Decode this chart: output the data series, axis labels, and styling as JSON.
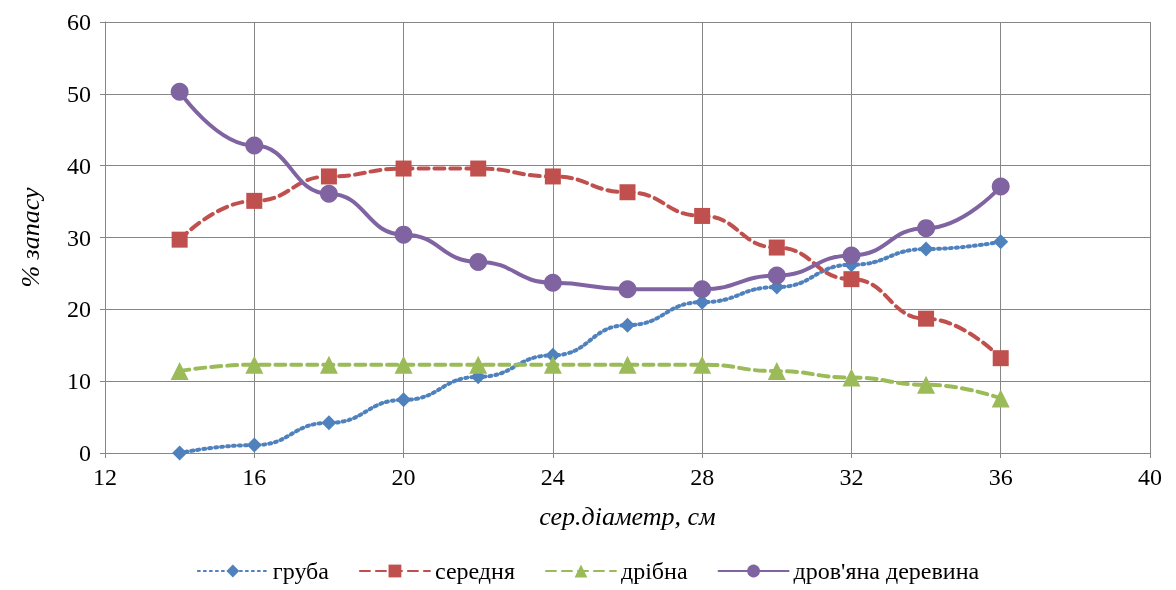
{
  "chart_data": {
    "type": "line",
    "xlabel": "сер.діаметр, см",
    "ylabel": "% запасу",
    "x": [
      14,
      16,
      18,
      20,
      22,
      24,
      26,
      28,
      30,
      32,
      34,
      36
    ],
    "xlim": [
      12,
      40
    ],
    "xticks": [
      12,
      16,
      20,
      24,
      28,
      32,
      36,
      40
    ],
    "ylim": [
      0,
      60
    ],
    "yticks": [
      0,
      10,
      20,
      30,
      40,
      50,
      60
    ],
    "grid": true,
    "legend": "bottom",
    "series": [
      {
        "name": "груба",
        "color": "#4f81bd",
        "marker": "diamond",
        "line_style": "dotted",
        "values": [
          0,
          1.1,
          4.2,
          7.4,
          10.6,
          13.6,
          17.8,
          21,
          23.1,
          26.2,
          28.4,
          29.4
        ]
      },
      {
        "name": "середня",
        "color": "#c0504d",
        "marker": "square",
        "line_style": "dashed",
        "values": [
          29.7,
          35.1,
          38.5,
          39.6,
          39.6,
          38.5,
          36.3,
          33,
          28.6,
          24.2,
          18.7,
          13.2
        ]
      },
      {
        "name": "дрібна",
        "color": "#9bbb59",
        "marker": "triangle",
        "line_style": "dashed",
        "values": [
          11.4,
          12.3,
          12.3,
          12.3,
          12.3,
          12.3,
          12.3,
          12.3,
          11.4,
          10.5,
          9.5,
          7.6
        ]
      },
      {
        "name": "дров'яна деревина",
        "color": "#8064a2",
        "marker": "circle",
        "line_style": "solid",
        "values": [
          50.3,
          42.8,
          36.1,
          30.4,
          26.6,
          23.7,
          22.8,
          22.8,
          24.7,
          27.5,
          31.3,
          37.1
        ]
      }
    ]
  }
}
